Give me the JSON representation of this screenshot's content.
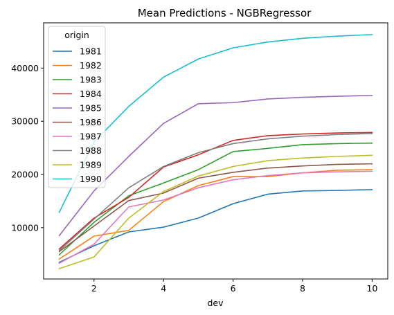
{
  "chart_data": {
    "type": "line",
    "title": "Mean Predictions - NGBRegressor",
    "xlabel": "dev",
    "ylabel": "",
    "x": [
      1,
      2,
      3,
      4,
      5,
      6,
      7,
      8,
      9,
      10
    ],
    "xlim": [
      0.55,
      10.45
    ],
    "ylim": [
      350,
      48500
    ],
    "xticks": [
      2,
      4,
      6,
      8,
      10
    ],
    "yticks": [
      10000,
      20000,
      30000,
      40000
    ],
    "grid": false,
    "legend": {
      "title": "origin",
      "placement": "top-left"
    },
    "series": [
      {
        "name": "1981",
        "color": "#1f77b4",
        "values": [
          3500,
          6600,
          9200,
          10100,
          11800,
          14500,
          16300,
          16900,
          17000,
          17150
        ]
      },
      {
        "name": "1982",
        "color": "#ff7f0e",
        "values": [
          4100,
          8400,
          9500,
          14900,
          17900,
          19600,
          19600,
          20300,
          20800,
          20900
        ]
      },
      {
        "name": "1983",
        "color": "#2ca02c",
        "values": [
          4900,
          11000,
          16000,
          18400,
          20900,
          24300,
          24900,
          25600,
          25800,
          25900
        ]
      },
      {
        "name": "1984",
        "color": "#d62728",
        "values": [
          6000,
          11800,
          15700,
          21400,
          23700,
          26400,
          27300,
          27600,
          27800,
          27900
        ]
      },
      {
        "name": "1985",
        "color": "#9467bd",
        "values": [
          8500,
          16900,
          23400,
          29600,
          33300,
          33500,
          34200,
          34500,
          34700,
          34850
        ]
      },
      {
        "name": "1986",
        "color": "#8c564b",
        "values": [
          5500,
          10300,
          15100,
          16500,
          19300,
          20400,
          21200,
          21600,
          21900,
          22000
        ]
      },
      {
        "name": "1987",
        "color": "#e377c2",
        "values": [
          3300,
          6900,
          13900,
          15200,
          17500,
          19000,
          19800,
          20300,
          20500,
          20600
        ]
      },
      {
        "name": "1988",
        "color": "#7f7f7f",
        "values": [
          5700,
          11600,
          17500,
          21500,
          24100,
          25800,
          26700,
          27200,
          27500,
          27700
        ]
      },
      {
        "name": "1989",
        "color": "#bcbd22",
        "values": [
          2300,
          4500,
          11800,
          16800,
          19700,
          21500,
          22600,
          23100,
          23400,
          23600
        ]
      },
      {
        "name": "1990",
        "color": "#17becf",
        "values": [
          12900,
          26100,
          32800,
          38300,
          41700,
          43800,
          44900,
          45600,
          46000,
          46300
        ]
      }
    ]
  }
}
